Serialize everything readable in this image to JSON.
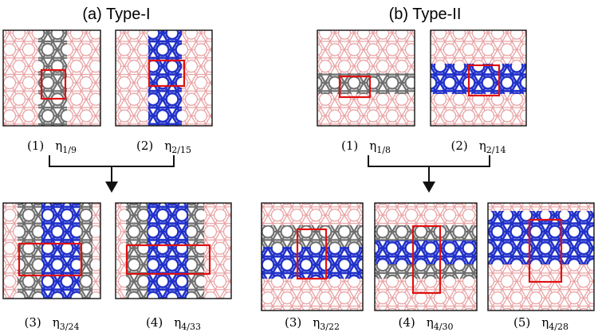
{
  "panels": {
    "a": {
      "title": "(a) Type-I",
      "items": [
        {
          "index": "(1)",
          "symbol": "η",
          "sub": "1/9"
        },
        {
          "index": "(2)",
          "symbol": "η",
          "sub": "2/15"
        },
        {
          "index": "(3)",
          "symbol": "η",
          "sub": "3/24"
        },
        {
          "index": "(4)",
          "symbol": "η",
          "sub": "4/33"
        }
      ]
    },
    "b": {
      "title": "(b) Type-II",
      "items": [
        {
          "index": "(1)",
          "symbol": "η",
          "sub": "1/8"
        },
        {
          "index": "(2)",
          "symbol": "η",
          "sub": "2/14"
        },
        {
          "index": "(3)",
          "symbol": "η",
          "sub": "3/22"
        },
        {
          "index": "(4)",
          "symbol": "η",
          "sub": "4/30"
        },
        {
          "index": "(5)",
          "symbol": "η",
          "sub": "4/28"
        }
      ]
    }
  }
}
